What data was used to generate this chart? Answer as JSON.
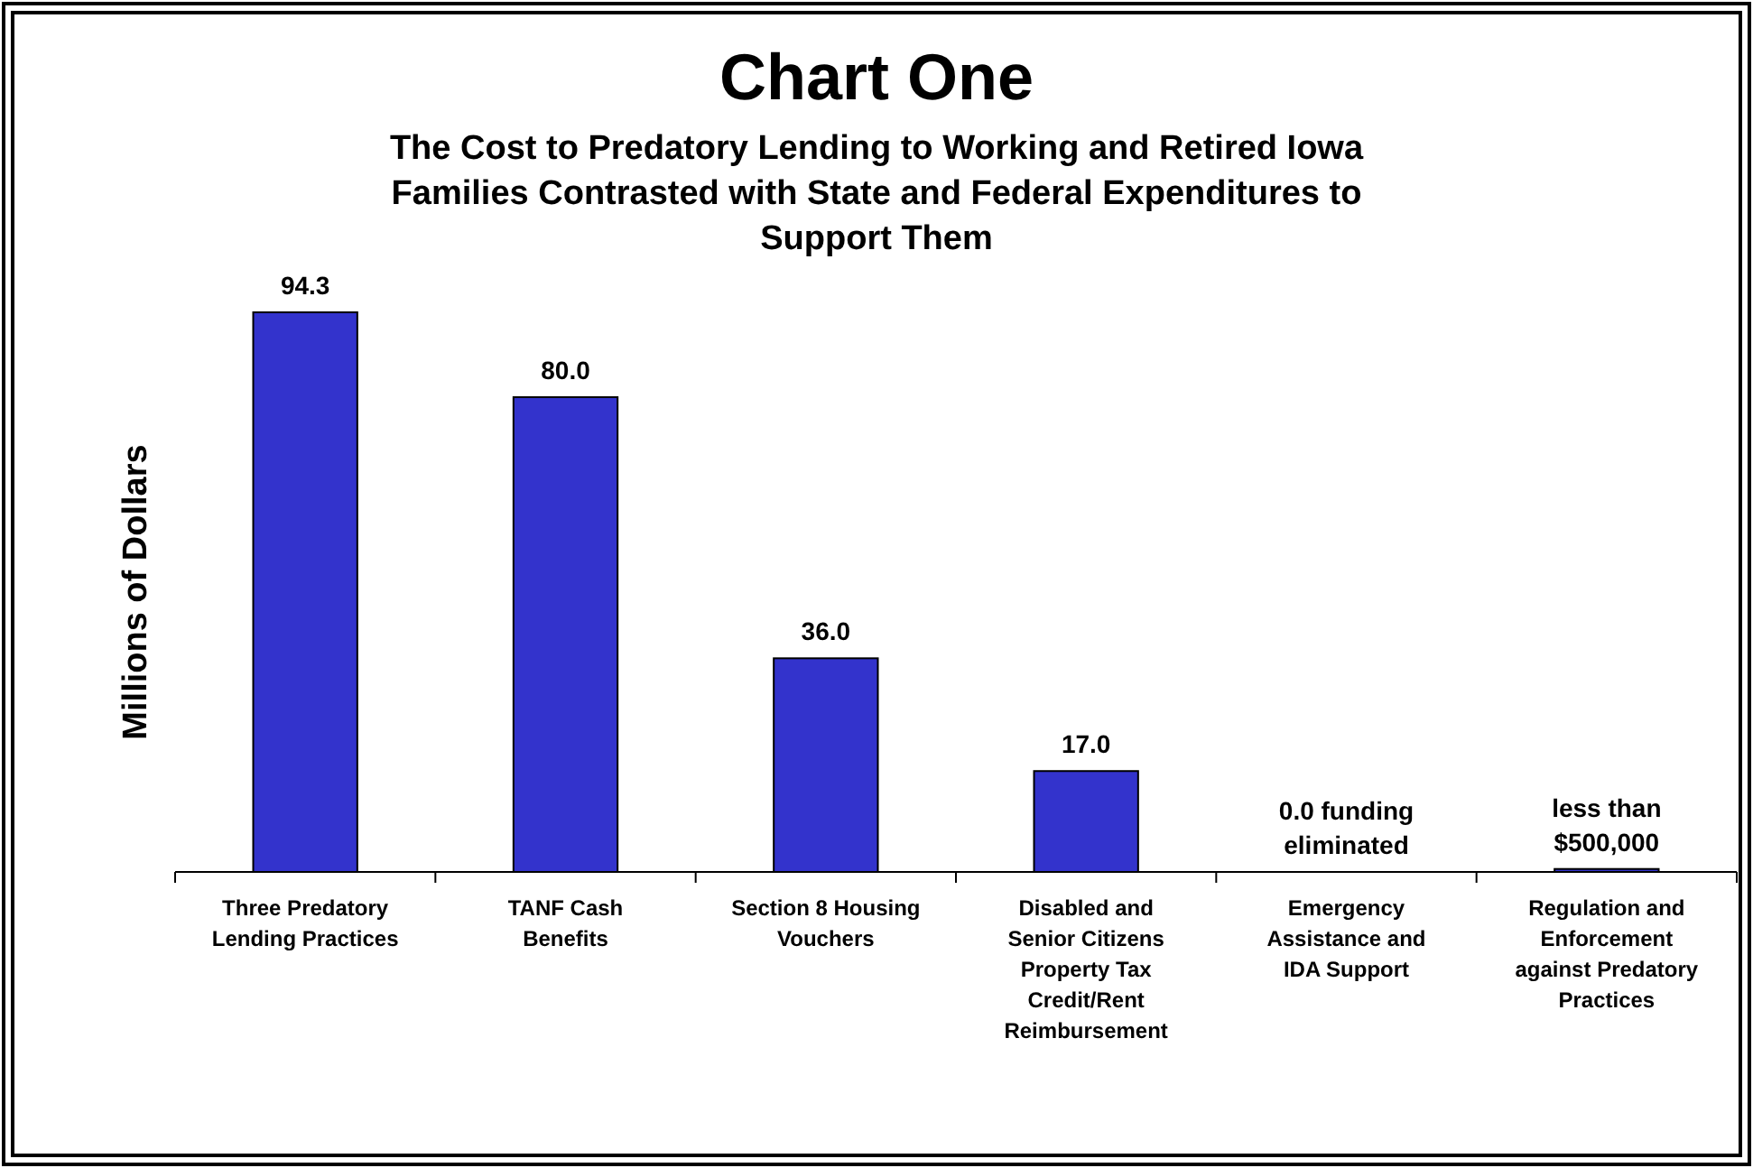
{
  "chart_data": {
    "type": "bar",
    "title": "Chart One",
    "subtitle": "The Cost to Predatory Lending to Working and Retired Iowa Families Contrasted with State and Federal Expenditures to Support Them",
    "ylabel": "Millions of Dollars",
    "categories": [
      "Three Predatory Lending Practices",
      "TANF Cash Benefits",
      "Section 8 Housing Vouchers",
      "Disabled and Senior Citizens Property Tax Credit/Rent Reimbursement",
      "Emergency Assistance and IDA Support",
      "Regulation and Enforcement against Predatory Practices"
    ],
    "values": [
      94.3,
      80.0,
      36.0,
      17.0,
      0,
      0.5
    ],
    "value_labels": [
      "94.3",
      "80.0",
      "36.0",
      "17.0",
      "0.0 funding eliminated",
      "less than $500,000"
    ],
    "color": "#3333cc"
  }
}
